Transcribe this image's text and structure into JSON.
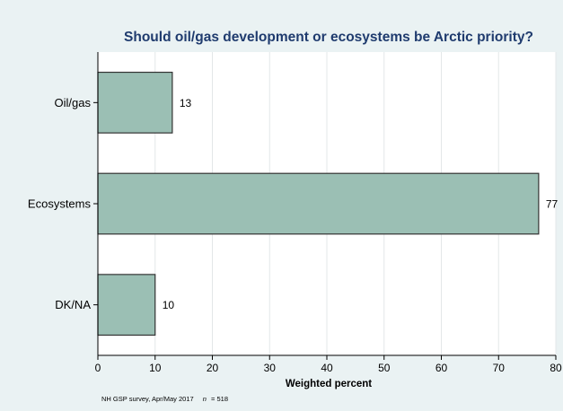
{
  "chart_data": {
    "type": "bar",
    "orientation": "horizontal",
    "title": "Should oil/gas development or ecosystems be Arctic priority?",
    "xlabel": "Weighted percent",
    "ylabel": "",
    "categories": [
      "Oil/gas",
      "Ecosystems",
      "DK/NA"
    ],
    "values": [
      13,
      77,
      10
    ],
    "data_labels": [
      "13",
      "77",
      "10"
    ],
    "xlim": [
      0,
      80
    ],
    "xticks": [
      0,
      10,
      20,
      30,
      40,
      50,
      60,
      70,
      80
    ],
    "grid": true,
    "legend": "none",
    "colors": {
      "bar": "#9bbfb4",
      "bar_edge": "#333333",
      "plot_bg": "#ffffff",
      "figure_bg": "#eaf2f3",
      "title": "#1f3b6e",
      "grid": "#e3e7e8"
    }
  },
  "footnote": {
    "source": "NH GSP survey, Apr/May 2017",
    "n_label": "n",
    "n_value": "=  518"
  }
}
